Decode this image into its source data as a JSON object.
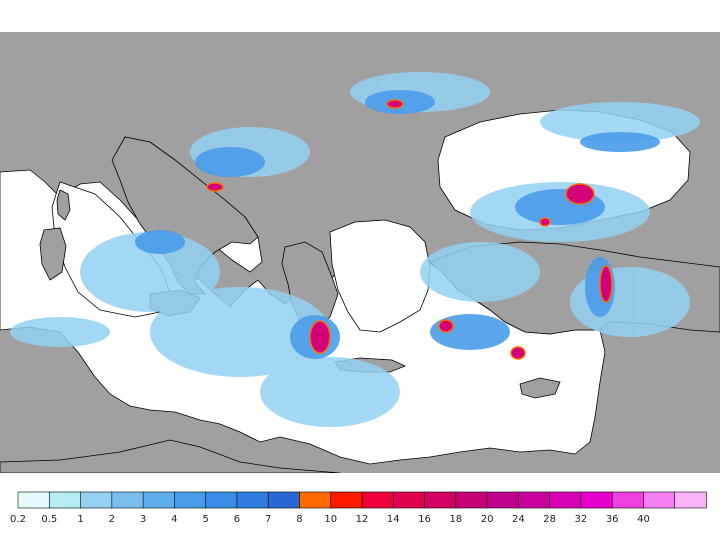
{
  "map": {
    "land_color": "#a0a0a0",
    "sea_color": "#ffffff",
    "border_color": "#000000",
    "hotspot_color": "#d4007a"
  },
  "legend": {
    "items": [
      {
        "label": "0.2",
        "color": "#e6fbfb"
      },
      {
        "label": "0.5",
        "color": "#b5ecf2"
      },
      {
        "label": "1",
        "color": "#94d2f3"
      },
      {
        "label": "2",
        "color": "#78bff0"
      },
      {
        "label": "3",
        "color": "#5eaeee"
      },
      {
        "label": "4",
        "color": "#4a9cea"
      },
      {
        "label": "5",
        "color": "#3a8be4"
      },
      {
        "label": "6",
        "color": "#2e7ade"
      },
      {
        "label": "7",
        "color": "#2a68d4"
      },
      {
        "label": "8",
        "color": "#ff6a00"
      },
      {
        "label": "10",
        "color": "#ff1a00"
      },
      {
        "label": "12",
        "color": "#f0003a"
      },
      {
        "label": "14",
        "color": "#e0004e"
      },
      {
        "label": "16",
        "color": "#d40062"
      },
      {
        "label": "18",
        "color": "#c80078"
      },
      {
        "label": "20",
        "color": "#c0008a"
      },
      {
        "label": "24",
        "color": "#cc009e"
      },
      {
        "label": "28",
        "color": "#d800b4"
      },
      {
        "label": "32",
        "color": "#e600cc"
      },
      {
        "label": "36",
        "color": "#f040e0"
      },
      {
        "label": "40",
        "color": "#f57ff0"
      },
      {
        "label": "",
        "color": "#f9b3f6"
      }
    ]
  }
}
